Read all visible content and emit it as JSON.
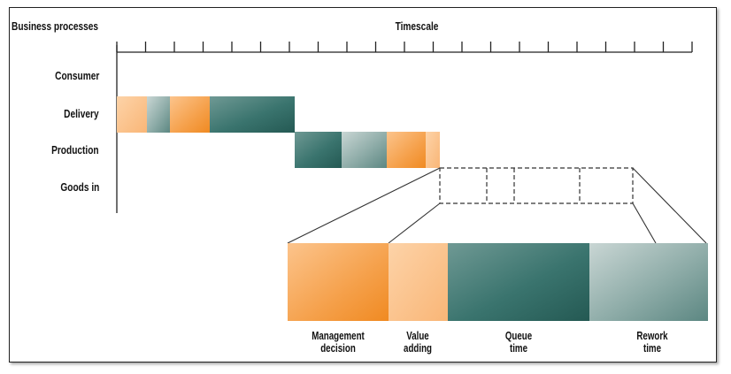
{
  "header": {
    "left": "Business processes",
    "center": "Timescale"
  },
  "rows": [
    "Consumer",
    "Delivery",
    "Production",
    "Goods in"
  ],
  "captions": [
    {
      "line1": "Management",
      "line2": "decision"
    },
    {
      "line1": "Value",
      "line2": "adding"
    },
    {
      "line1": "Queue",
      "line2": "time"
    },
    {
      "line1": "Rework",
      "line2": "time"
    }
  ],
  "colors": {
    "orange": "#f39a3c",
    "light_orange": "#fbc28a",
    "dark_teal": "#2f6b65",
    "light_teal": "#94b2ae",
    "axis": "#222222"
  }
}
